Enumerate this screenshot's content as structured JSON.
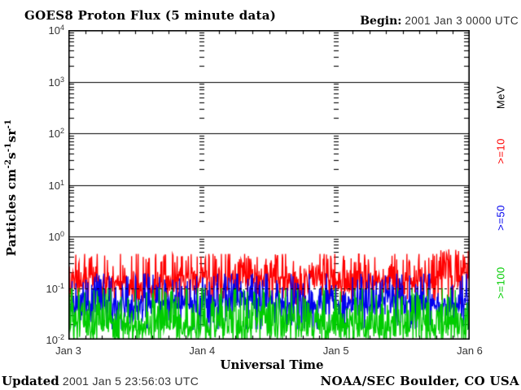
{
  "header": {
    "title": "GOES8 Proton Flux (5 minute data)",
    "begin_label": "Begin:",
    "begin_value": "2001 Jan 3 0000 UTC"
  },
  "footer": {
    "updated_label": "Updated",
    "updated_value": "2001 Jan  5 23:56:03 UTC",
    "credit": "NOAA/SEC Boulder, CO USA"
  },
  "axes": {
    "xlabel": "Universal Time",
    "xticks": [
      "Jan 3",
      "Jan 4",
      "Jan 5",
      "Jan 6"
    ],
    "yticks": [
      {
        "base": "10",
        "exp": "4"
      },
      {
        "base": "10",
        "exp": "3"
      },
      {
        "base": "10",
        "exp": "2"
      },
      {
        "base": "10",
        "exp": "1"
      },
      {
        "base": "10",
        "exp": "0"
      },
      {
        "base": "10",
        "exp": "-1"
      },
      {
        "base": "10",
        "exp": "-2"
      }
    ],
    "ylabel_parts": [
      {
        "t": "Particles cm"
      },
      {
        "sup": "-2"
      },
      {
        "t": "s"
      },
      {
        "sup": "-1"
      },
      {
        "t": "sr"
      },
      {
        "sup": "-1"
      }
    ]
  },
  "right_labels": [
    {
      "text": "MeV",
      "color": "#000000",
      "y": 120
    },
    {
      "text": ">=10",
      "color": "#FF0000",
      "y": 186
    },
    {
      "text": ">=50",
      "color": "#0000EE",
      "y": 268
    },
    {
      "text": ">=100",
      "color": "#00CC00",
      "y": 348
    }
  ],
  "colors": {
    "red": "#FF0000",
    "blue": "#0000EE",
    "green": "#00CC00",
    "axis": "#000000",
    "text_light": "#343434"
  },
  "chart_data": {
    "type": "line",
    "title": "GOES8 Proton Flux (5 minute data)",
    "xlabel": "Universal Time",
    "ylabel": "Particles cm^-2 s^-1 sr^-1",
    "x_start": "2001 Jan 3 0000 UTC",
    "x_end": "2001 Jan 6 0000 UTC",
    "x_day_labels": [
      "Jan 3",
      "Jan 4",
      "Jan 5",
      "Jan 6"
    ],
    "n_days": 3,
    "cadence_minutes": 5,
    "n_points": 864,
    "y_scale": "log",
    "ylim": [
      0.01,
      10000
    ],
    "solid_decade_gridlines": [
      1000,
      100,
      10,
      1
    ],
    "dashed_gridline": 0.1,
    "day_boundary_tick_columns": [
      "Jan 4",
      "Jan 5"
    ],
    "minor_ticks_per_decade": [
      2,
      3,
      4,
      5,
      6,
      7,
      8,
      9
    ],
    "x_minor_tick_hours": 3,
    "series": [
      {
        "name": ">=10 MeV",
        "color": "#FF0000",
        "approx_median": 0.12,
        "approx_min": 0.05,
        "approx_max": 0.55,
        "log_base": -0.93,
        "log_min": -1.32,
        "log_max": -0.34,
        "spike_prob": 0.5,
        "dip_prob": 0.3,
        "end_boost": true,
        "seed": 11
      },
      {
        "name": ">=50 MeV",
        "color": "#0000EE",
        "approx_median": 0.05,
        "approx_min": 0.016,
        "approx_max": 0.2,
        "log_base": -1.3,
        "log_min": -1.8,
        "log_max": -0.72,
        "spike_prob": 0.45,
        "dip_prob": 0.32,
        "end_boost": false,
        "seed": 22
      },
      {
        "name": ">=100 MeV",
        "color": "#00CC00",
        "approx_median": 0.022,
        "approx_min": 0.01,
        "approx_max": 0.1,
        "log_base": -1.64,
        "log_min": -2.0,
        "log_max": -1.0,
        "spike_prob": 0.4,
        "dip_prob": 0.58,
        "end_boost": false,
        "seed": 33
      }
    ]
  }
}
